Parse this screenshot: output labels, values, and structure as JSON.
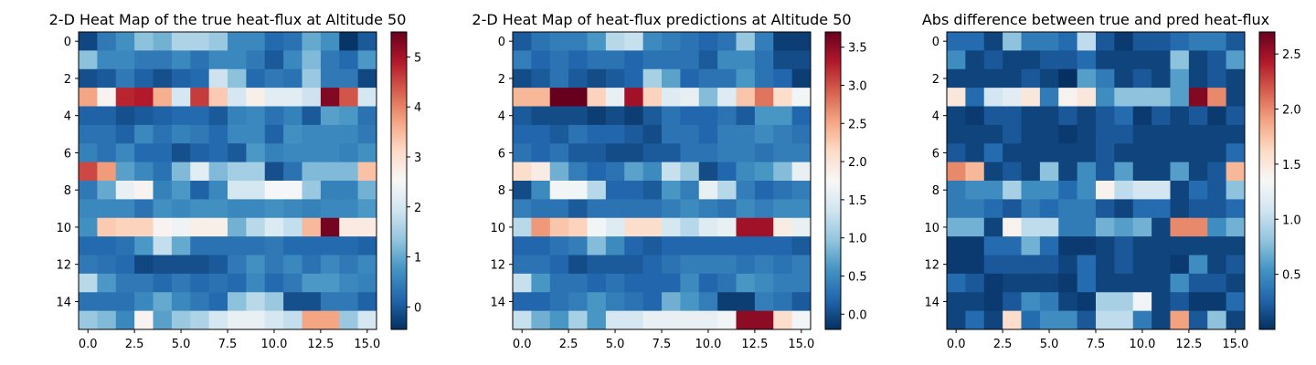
{
  "chart_data": [
    {
      "type": "heatmap",
      "title": "2-D Heat Map of the true heat-flux at Altitude 50",
      "xticks": [
        "0.0",
        "2.5",
        "5.0",
        "7.5",
        "10.0",
        "12.5",
        "15.0"
      ],
      "yticks": [
        "0",
        "2",
        "4",
        "6",
        "8",
        "10",
        "12",
        "14"
      ],
      "colorbar": {
        "vmin": -0.45,
        "vmax": 5.5,
        "ticks": [
          "0",
          "1",
          "2",
          "3",
          "4",
          "5"
        ],
        "tick_values": [
          0,
          1,
          2,
          3,
          4,
          5
        ]
      },
      "values": [
        [
          -0.2,
          0.4,
          0.7,
          1.3,
          1.1,
          1.6,
          1.6,
          1.4,
          0.6,
          0.6,
          0.2,
          0.3,
          1.0,
          0.7,
          -0.4,
          0.0
        ],
        [
          1.3,
          0.6,
          0.6,
          0.4,
          0.4,
          0.6,
          0.3,
          0.6,
          0.6,
          0.4,
          0.0,
          0.6,
          1.2,
          0.4,
          0.2,
          0.8
        ],
        [
          -0.1,
          0.0,
          0.4,
          0.1,
          -0.1,
          0.1,
          0.2,
          1.9,
          1.3,
          0.2,
          0.4,
          0.3,
          1.4,
          0.4,
          0.4,
          -0.2
        ],
        [
          3.7,
          2.6,
          4.8,
          4.9,
          3.6,
          2.0,
          4.6,
          3.3,
          2.0,
          2.7,
          2.2,
          2.2,
          1.9,
          5.3,
          4.4,
          2.0
        ],
        [
          0.1,
          0.1,
          -0.1,
          0.0,
          0.1,
          0.2,
          0.2,
          0.0,
          0.5,
          0.6,
          0.3,
          0.5,
          0.0,
          0.9,
          0.8,
          0.3
        ],
        [
          0.3,
          0.3,
          0.1,
          0.6,
          0.3,
          0.5,
          0.4,
          0.2,
          0.6,
          0.6,
          0.1,
          0.7,
          0.6,
          0.6,
          0.6,
          0.4
        ],
        [
          0.5,
          0.3,
          0.6,
          0.2,
          0.2,
          -0.1,
          0.1,
          0.2,
          0.0,
          0.8,
          0.5,
          0.6,
          0.6,
          0.6,
          0.5,
          0.7
        ],
        [
          4.5,
          3.8,
          0.9,
          0.6,
          0.3,
          1.2,
          2.2,
          1.2,
          1.5,
          1.5,
          -0.1,
          0.3,
          1.2,
          1.2,
          1.2,
          3.4
        ],
        [
          0.4,
          1.0,
          2.3,
          2.6,
          0.5,
          0.8,
          0.1,
          0.6,
          2.0,
          2.0,
          2.5,
          2.5,
          1.4,
          0.5,
          0.5,
          1.1
        ],
        [
          0.6,
          0.6,
          0.6,
          0.3,
          0.7,
          0.6,
          0.7,
          0.7,
          0.6,
          0.6,
          0.7,
          0.6,
          0.5,
          0.6,
          0.6,
          0.8
        ],
        [
          0.7,
          3.3,
          3.2,
          3.2,
          2.6,
          2.4,
          2.7,
          2.7,
          1.1,
          1.7,
          2.1,
          1.8,
          3.5,
          5.4,
          2.8,
          2.8
        ],
        [
          0.2,
          0.2,
          0.3,
          0.8,
          1.8,
          1.0,
          0.3,
          0.3,
          0.3,
          0.3,
          0.4,
          0.2,
          0.2,
          0.2,
          0.2,
          0.1
        ],
        [
          0.4,
          0.3,
          0.2,
          -0.2,
          -0.1,
          -0.1,
          -0.1,
          0.0,
          0.4,
          0.7,
          0.4,
          0.6,
          0.3,
          0.6,
          0.4,
          0.6
        ],
        [
          1.7,
          0.8,
          0.4,
          0.4,
          0.2,
          0.4,
          0.2,
          0.3,
          0.2,
          0.6,
          0.2,
          0.4,
          0.8,
          0.8,
          0.6,
          0.5
        ],
        [
          0.3,
          0.3,
          0.3,
          0.6,
          1.0,
          0.6,
          0.4,
          0.2,
          1.3,
          1.7,
          1.4,
          -0.1,
          -0.1,
          0.4,
          0.4,
          0.1
        ],
        [
          1.4,
          1.2,
          0.6,
          2.6,
          0.9,
          1.4,
          1.6,
          2.0,
          2.3,
          2.3,
          2.0,
          1.8,
          3.7,
          3.7,
          1.4,
          2.0
        ]
      ]
    },
    {
      "type": "heatmap",
      "title": "2-D Heat Map of heat-flux predictions at Altitude 50",
      "xticks": [
        "0.0",
        "2.5",
        "5.0",
        "7.5",
        "10.0",
        "12.5",
        "15.0"
      ],
      "yticks": [
        "0",
        "2",
        "4",
        "6",
        "8",
        "10",
        "12",
        "14"
      ],
      "colorbar": {
        "vmin": -0.2,
        "vmax": 3.7,
        "ticks": [
          "0.0",
          "0.5",
          "1.0",
          "1.5",
          "2.0",
          "2.5",
          "3.0",
          "3.5"
        ],
        "tick_values": [
          0.0,
          0.5,
          1.0,
          1.5,
          2.0,
          2.5,
          3.0,
          3.5
        ]
      },
      "values": [
        [
          0.1,
          0.3,
          0.4,
          0.4,
          0.6,
          1.2,
          1.3,
          0.5,
          0.4,
          0.3,
          0.2,
          0.3,
          1.0,
          0.4,
          -0.1,
          -0.1
        ],
        [
          0.4,
          0.2,
          0.3,
          0.2,
          0.3,
          0.3,
          0.2,
          0.3,
          0.3,
          0.3,
          0.1,
          0.5,
          0.5,
          0.3,
          0.0,
          0.0
        ],
        [
          0.0,
          0.1,
          0.3,
          0.1,
          0.0,
          0.1,
          0.2,
          1.1,
          0.7,
          0.2,
          0.3,
          0.3,
          0.6,
          0.3,
          0.2,
          -0.1
        ],
        [
          2.4,
          2.4,
          3.7,
          3.7,
          2.2,
          1.6,
          3.4,
          2.2,
          1.5,
          1.6,
          0.9,
          1.5,
          2.3,
          2.8,
          2.1,
          1.7
        ],
        [
          0.1,
          0.0,
          0.0,
          0.0,
          -0.1,
          0.0,
          -0.1,
          0.1,
          0.3,
          0.2,
          0.2,
          0.3,
          0.1,
          0.6,
          0.6,
          0.2
        ],
        [
          0.2,
          0.2,
          0.1,
          0.3,
          0.2,
          0.2,
          0.1,
          0.0,
          0.3,
          0.3,
          0.2,
          0.4,
          0.4,
          0.5,
          0.4,
          0.3
        ],
        [
          0.3,
          0.2,
          0.3,
          0.1,
          0.1,
          0.0,
          0.0,
          0.1,
          0.1,
          0.3,
          0.3,
          0.4,
          0.4,
          0.3,
          0.4,
          0.4
        ],
        [
          2.1,
          1.9,
          0.8,
          0.4,
          0.2,
          0.3,
          0.7,
          0.5,
          1.3,
          1.0,
          0.0,
          0.2,
          0.5,
          0.6,
          0.9,
          1.6
        ],
        [
          0.0,
          0.5,
          1.7,
          1.7,
          1.2,
          0.2,
          0.2,
          0.1,
          0.6,
          0.4,
          1.6,
          1.2,
          0.4,
          0.2,
          0.3,
          0.4
        ],
        [
          0.4,
          0.3,
          0.3,
          0.1,
          0.3,
          0.3,
          0.3,
          0.3,
          0.4,
          0.5,
          0.4,
          0.3,
          0.5,
          0.4,
          0.5,
          0.5
        ],
        [
          1.2,
          2.6,
          2.3,
          2.2,
          1.7,
          1.5,
          2.1,
          2.1,
          1.4,
          1.2,
          1.5,
          1.6,
          3.4,
          3.4,
          1.9,
          1.6
        ],
        [
          0.2,
          0.2,
          0.3,
          0.4,
          0.9,
          0.5,
          0.2,
          0.1,
          0.2,
          0.2,
          0.2,
          0.2,
          0.2,
          0.2,
          0.2,
          0.1
        ],
        [
          0.3,
          0.3,
          0.2,
          0.0,
          0.1,
          0.1,
          0.1,
          0.2,
          0.3,
          0.4,
          0.4,
          0.4,
          0.3,
          0.4,
          0.3,
          0.4
        ],
        [
          1.3,
          0.6,
          0.3,
          0.3,
          0.2,
          0.3,
          0.2,
          0.2,
          0.2,
          0.5,
          0.2,
          0.3,
          0.6,
          0.5,
          0.4,
          0.4
        ],
        [
          0.2,
          0.2,
          0.3,
          0.4,
          0.6,
          0.4,
          0.3,
          0.2,
          0.8,
          0.6,
          0.4,
          -0.1,
          -0.1,
          0.4,
          0.3,
          0.1
        ],
        [
          1.3,
          0.8,
          0.6,
          1.1,
          0.6,
          1.4,
          1.4,
          1.6,
          1.6,
          1.6,
          1.6,
          1.7,
          3.5,
          3.5,
          2.1,
          1.7
        ]
      ]
    },
    {
      "type": "heatmap",
      "title": "Abs difference between true and pred heat-flux",
      "xticks": [
        "0.0",
        "2.5",
        "5.0",
        "7.5",
        "10.0",
        "12.5",
        "15.0"
      ],
      "yticks": [
        "0",
        "2",
        "4",
        "6",
        "8",
        "10",
        "12",
        "14"
      ],
      "colorbar": {
        "vmin": 0.0,
        "vmax": 2.7,
        "ticks": [
          "0.5",
          "1.0",
          "1.5",
          "2.0",
          "2.5"
        ],
        "tick_values": [
          0.5,
          1.0,
          1.5,
          2.0,
          2.5
        ]
      },
      "values": [
        [
          0.3,
          0.3,
          0.1,
          0.8,
          0.4,
          0.4,
          0.3,
          1.0,
          0.2,
          0.05,
          0.2,
          0.2,
          0.3,
          0.4,
          0.4,
          0.2
        ],
        [
          0.5,
          0.1,
          0.2,
          0.1,
          0.1,
          0.2,
          0.2,
          0.3,
          0.1,
          0.1,
          0.1,
          0.1,
          0.8,
          0.1,
          0.2,
          0.6
        ],
        [
          0.1,
          0.1,
          0.1,
          0.1,
          0.2,
          0.1,
          0.0,
          0.6,
          0.4,
          0.1,
          0.2,
          0.1,
          0.6,
          0.1,
          0.2,
          0.1
        ],
        [
          1.5,
          0.3,
          1.1,
          1.2,
          1.5,
          0.4,
          1.4,
          1.5,
          0.5,
          0.8,
          0.8,
          0.8,
          0.6,
          2.6,
          2.0,
          0.1
        ],
        [
          0.1,
          0.05,
          0.2,
          0.2,
          0.1,
          0.1,
          0.2,
          0.1,
          0.2,
          0.3,
          0.05,
          0.2,
          0.1,
          0.2,
          0.05,
          0.2
        ],
        [
          0.1,
          0.1,
          0.1,
          0.2,
          0.1,
          0.1,
          0.05,
          0.1,
          0.2,
          0.2,
          0.1,
          0.1,
          0.1,
          0.1,
          0.1,
          0.1
        ],
        [
          0.2,
          0.1,
          0.3,
          0.1,
          0.1,
          0.1,
          0.1,
          0.1,
          0.2,
          0.1,
          0.1,
          0.1,
          0.1,
          0.1,
          0.1,
          0.3
        ],
        [
          2.0,
          1.8,
          0.1,
          0.2,
          0.1,
          0.8,
          0.1,
          0.5,
          0.2,
          0.6,
          0.1,
          0.1,
          0.6,
          0.1,
          0.2,
          1.8
        ],
        [
          0.4,
          0.5,
          0.5,
          0.9,
          0.5,
          0.5,
          0.3,
          0.5,
          1.4,
          1.0,
          1.1,
          1.1,
          0.1,
          0.3,
          0.2,
          0.8
        ],
        [
          0.4,
          0.4,
          0.3,
          0.2,
          0.4,
          0.3,
          0.4,
          0.4,
          0.2,
          0.1,
          0.3,
          0.3,
          0.1,
          0.2,
          0.2,
          0.3
        ],
        [
          0.7,
          0.7,
          0.1,
          1.4,
          1.0,
          1.0,
          0.4,
          0.4,
          0.7,
          0.6,
          0.7,
          0.1,
          2.0,
          2.0,
          0.5,
          0.7
        ],
        [
          0.05,
          0.05,
          0.3,
          0.3,
          0.7,
          0.3,
          0.05,
          0.05,
          0.1,
          0.2,
          0.1,
          0.1,
          0.1,
          0.1,
          0.1,
          0.1
        ],
        [
          0.05,
          0.05,
          0.2,
          0.2,
          0.2,
          0.2,
          0.1,
          0.3,
          0.1,
          0.2,
          0.1,
          0.1,
          0.05,
          0.5,
          0.1,
          0.2
        ],
        [
          0.3,
          0.2,
          0.05,
          0.1,
          0.1,
          0.1,
          0.05,
          0.3,
          0.1,
          0.1,
          0.1,
          0.1,
          0.5,
          0.2,
          0.2,
          0.1
        ],
        [
          0.1,
          0.1,
          0.05,
          0.2,
          0.5,
          0.4,
          0.1,
          0.05,
          0.9,
          0.9,
          1.3,
          0.1,
          0.2,
          0.05,
          0.05,
          0.3
        ],
        [
          0.1,
          0.3,
          0.1,
          1.6,
          0.3,
          0.5,
          0.5,
          0.2,
          1.0,
          1.0,
          0.4,
          0.1,
          1.9,
          0.2,
          0.8,
          0.1
        ]
      ]
    }
  ]
}
